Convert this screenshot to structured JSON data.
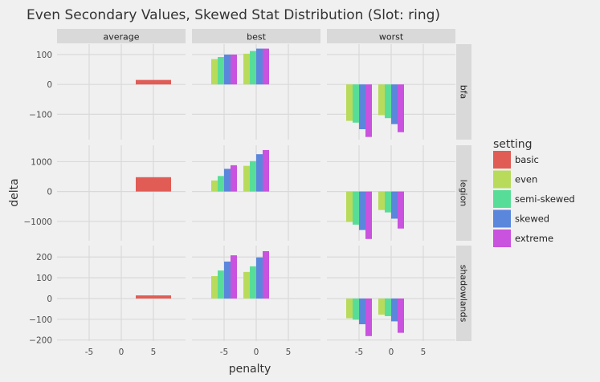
{
  "chart_data": {
    "type": "bar",
    "title": "Even Secondary Values, Skewed Stat Distribution (Slot: ring)",
    "xlabel": "penalty",
    "ylabel": "delta",
    "facet_columns": [
      "average",
      "best",
      "worst"
    ],
    "facet_rows": [
      "bfa",
      "legion",
      "shadowlands"
    ],
    "x_ticks": [
      "-5",
      "0",
      "5"
    ],
    "legend": {
      "title": "setting",
      "entries": [
        {
          "name": "basic",
          "color": "#e05c55"
        },
        {
          "name": "even",
          "color": "#b8db5c"
        },
        {
          "name": "semi-skewed",
          "color": "#58dd98"
        },
        {
          "name": "skewed",
          "color": "#5a86dc"
        },
        {
          "name": "extreme",
          "color": "#c952de"
        }
      ]
    },
    "rows": {
      "bfa": {
        "y_ticks": [
          "100",
          "0",
          "−100"
        ],
        "y_tick_values": [
          100,
          0,
          -100
        ],
        "ylim": [
          -185,
          135
        ]
      },
      "legion": {
        "y_ticks": [
          "1000",
          "0",
          "−1000"
        ],
        "y_tick_values": [
          1000,
          0,
          -1000
        ],
        "ylim": [
          -1650,
          1550
        ]
      },
      "shadowlands": {
        "y_ticks": [
          "200",
          "100",
          "0",
          "−100",
          "−200"
        ],
        "y_tick_values": [
          200,
          100,
          0,
          -100,
          -200
        ],
        "ylim": [
          -205,
          255
        ]
      }
    },
    "xlim": [
      -10,
      10
    ],
    "bar_width_units": 1,
    "bars": {
      "average": {
        "bfa": [
          {
            "setting": "basic",
            "x": 5,
            "width": 5.5,
            "value": 15
          }
        ],
        "legion": [
          {
            "setting": "basic",
            "x": 5,
            "width": 5.5,
            "value": 480
          }
        ],
        "shadowlands": [
          {
            "setting": "basic",
            "x": 5,
            "width": 5.5,
            "value": 15
          }
        ]
      },
      "best": {
        "bfa": [
          {
            "setting": "even",
            "x": -6.5,
            "value": 85
          },
          {
            "setting": "semi-skewed",
            "x": -5.5,
            "value": 92
          },
          {
            "setting": "skewed",
            "x": -4.5,
            "value": 100
          },
          {
            "setting": "extreme",
            "x": -3.5,
            "value": 100
          },
          {
            "setting": "even",
            "x": -1.5,
            "value": 103
          },
          {
            "setting": "semi-skewed",
            "x": -0.5,
            "value": 112
          },
          {
            "setting": "skewed",
            "x": 0.5,
            "value": 120
          },
          {
            "setting": "extreme",
            "x": 1.5,
            "value": 120
          }
        ],
        "legion": [
          {
            "setting": "even",
            "x": -6.5,
            "value": 370
          },
          {
            "setting": "semi-skewed",
            "x": -5.5,
            "value": 520
          },
          {
            "setting": "skewed",
            "x": -4.5,
            "value": 760
          },
          {
            "setting": "extreme",
            "x": -3.5,
            "value": 880
          },
          {
            "setting": "even",
            "x": -1.5,
            "value": 860
          },
          {
            "setting": "semi-skewed",
            "x": -0.5,
            "value": 1020
          },
          {
            "setting": "skewed",
            "x": 0.5,
            "value": 1250
          },
          {
            "setting": "extreme",
            "x": 1.5,
            "value": 1390
          }
        ],
        "shadowlands": [
          {
            "setting": "even",
            "x": -6.5,
            "value": 108
          },
          {
            "setting": "semi-skewed",
            "x": -5.5,
            "value": 135
          },
          {
            "setting": "skewed",
            "x": -4.5,
            "value": 178
          },
          {
            "setting": "extreme",
            "x": -3.5,
            "value": 208
          },
          {
            "setting": "even",
            "x": -1.5,
            "value": 128
          },
          {
            "setting": "semi-skewed",
            "x": -0.5,
            "value": 155
          },
          {
            "setting": "skewed",
            "x": 0.5,
            "value": 198
          },
          {
            "setting": "extreme",
            "x": 1.5,
            "value": 228
          }
        ]
      },
      "worst": {
        "bfa": [
          {
            "setting": "even",
            "x": -6.5,
            "value": -122
          },
          {
            "setting": "semi-skewed",
            "x": -5.5,
            "value": -128
          },
          {
            "setting": "skewed",
            "x": -4.5,
            "value": -150
          },
          {
            "setting": "extreme",
            "x": -3.5,
            "value": -176
          },
          {
            "setting": "even",
            "x": -1.5,
            "value": -103
          },
          {
            "setting": "semi-skewed",
            "x": -0.5,
            "value": -113
          },
          {
            "setting": "skewed",
            "x": 0.5,
            "value": -133
          },
          {
            "setting": "extreme",
            "x": 1.5,
            "value": -160
          }
        ],
        "legion": [
          {
            "setting": "even",
            "x": -6.5,
            "value": -1020
          },
          {
            "setting": "semi-skewed",
            "x": -5.5,
            "value": -1110
          },
          {
            "setting": "skewed",
            "x": -4.5,
            "value": -1290
          },
          {
            "setting": "extreme",
            "x": -3.5,
            "value": -1590
          },
          {
            "setting": "even",
            "x": -1.5,
            "value": -620
          },
          {
            "setting": "semi-skewed",
            "x": -0.5,
            "value": -700
          },
          {
            "setting": "skewed",
            "x": 0.5,
            "value": -910
          },
          {
            "setting": "extreme",
            "x": 1.5,
            "value": -1240
          }
        ],
        "shadowlands": [
          {
            "setting": "even",
            "x": -6.5,
            "value": -95
          },
          {
            "setting": "semi-skewed",
            "x": -5.5,
            "value": -102
          },
          {
            "setting": "skewed",
            "x": -4.5,
            "value": -124
          },
          {
            "setting": "extreme",
            "x": -3.5,
            "value": -181
          },
          {
            "setting": "even",
            "x": -1.5,
            "value": -78
          },
          {
            "setting": "semi-skewed",
            "x": -0.5,
            "value": -85
          },
          {
            "setting": "skewed",
            "x": 0.5,
            "value": -110
          },
          {
            "setting": "extreme",
            "x": 1.5,
            "value": -165
          }
        ]
      }
    }
  }
}
